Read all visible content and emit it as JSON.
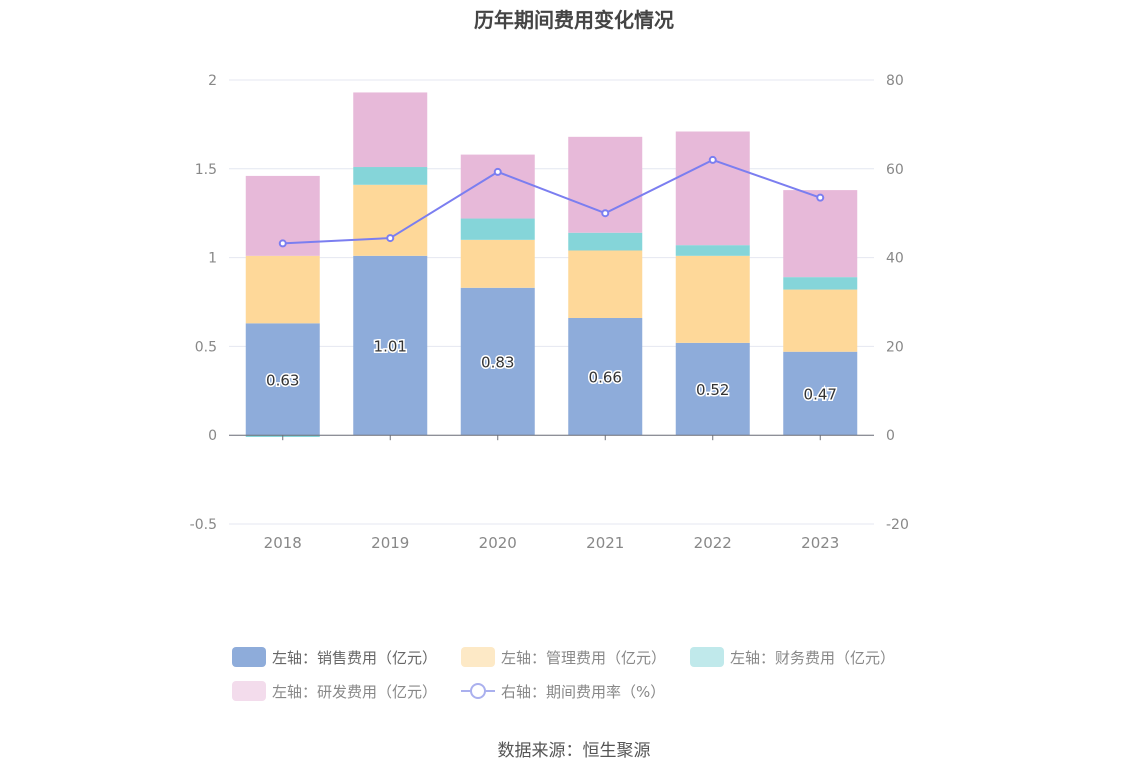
{
  "title": "历年期间费用变化情况",
  "source": "数据来源：恒生聚源",
  "colors": {
    "sales": "#8eacda",
    "mgmt": "#fed899",
    "finance": "#85d5d9",
    "rd": "#e7b9d9",
    "rate": "#7b7ef0",
    "axis_text": "#888888",
    "grid": "#e4e7f0"
  },
  "legend": [
    {
      "key": "sales",
      "label": "左轴：销售费用（亿元）",
      "type": "bar",
      "dimmed": false
    },
    {
      "key": "mgmt",
      "label": "左轴：管理费用（亿元）",
      "type": "bar",
      "dimmed": true
    },
    {
      "key": "finance",
      "label": "左轴：财务费用（亿元）",
      "type": "bar",
      "dimmed": true
    },
    {
      "key": "rd",
      "label": "左轴：研发费用（亿元）",
      "type": "bar",
      "dimmed": true
    },
    {
      "key": "rate",
      "label": "右轴：期间费用率（%）",
      "type": "line",
      "dimmed": true
    }
  ],
  "chart_data": {
    "type": "bar",
    "stacked": true,
    "categories": [
      "2018",
      "2019",
      "2020",
      "2021",
      "2022",
      "2023"
    ],
    "y_left": {
      "ylim": [
        -0.5,
        2
      ],
      "ticks": [
        "-0.5",
        "0",
        "0.5",
        "1",
        "1.5",
        "2"
      ]
    },
    "y_right": {
      "ylim": [
        -20,
        80
      ],
      "ticks": [
        "-20",
        "0",
        "20",
        "40",
        "60",
        "80"
      ]
    },
    "series": [
      {
        "key": "sales",
        "name": "左轴：销售费用（亿元）",
        "axis": "left",
        "values": [
          0.63,
          1.01,
          0.83,
          0.66,
          0.52,
          0.47
        ],
        "labels": [
          "0.63",
          "1.01",
          "0.83",
          "0.66",
          "0.52",
          "0.47"
        ]
      },
      {
        "key": "mgmt",
        "name": "左轴：管理费用（亿元）",
        "axis": "left",
        "values": [
          0.38,
          0.4,
          0.27,
          0.38,
          0.49,
          0.35
        ]
      },
      {
        "key": "finance",
        "name": "左轴：财务费用（亿元）",
        "axis": "left",
        "values": [
          -0.01,
          0.1,
          0.12,
          0.1,
          0.06,
          0.07
        ]
      },
      {
        "key": "rd",
        "name": "左轴：研发费用（亿元）",
        "axis": "left",
        "values": [
          0.45,
          0.42,
          0.36,
          0.54,
          0.64,
          0.49
        ]
      },
      {
        "key": "rate",
        "name": "右轴：期间费用率（%）",
        "axis": "right",
        "type": "line",
        "values": [
          43.2,
          44.4,
          59.3,
          50.0,
          62.0,
          53.5
        ]
      }
    ],
    "legend_position": "bottom",
    "grid": true
  }
}
